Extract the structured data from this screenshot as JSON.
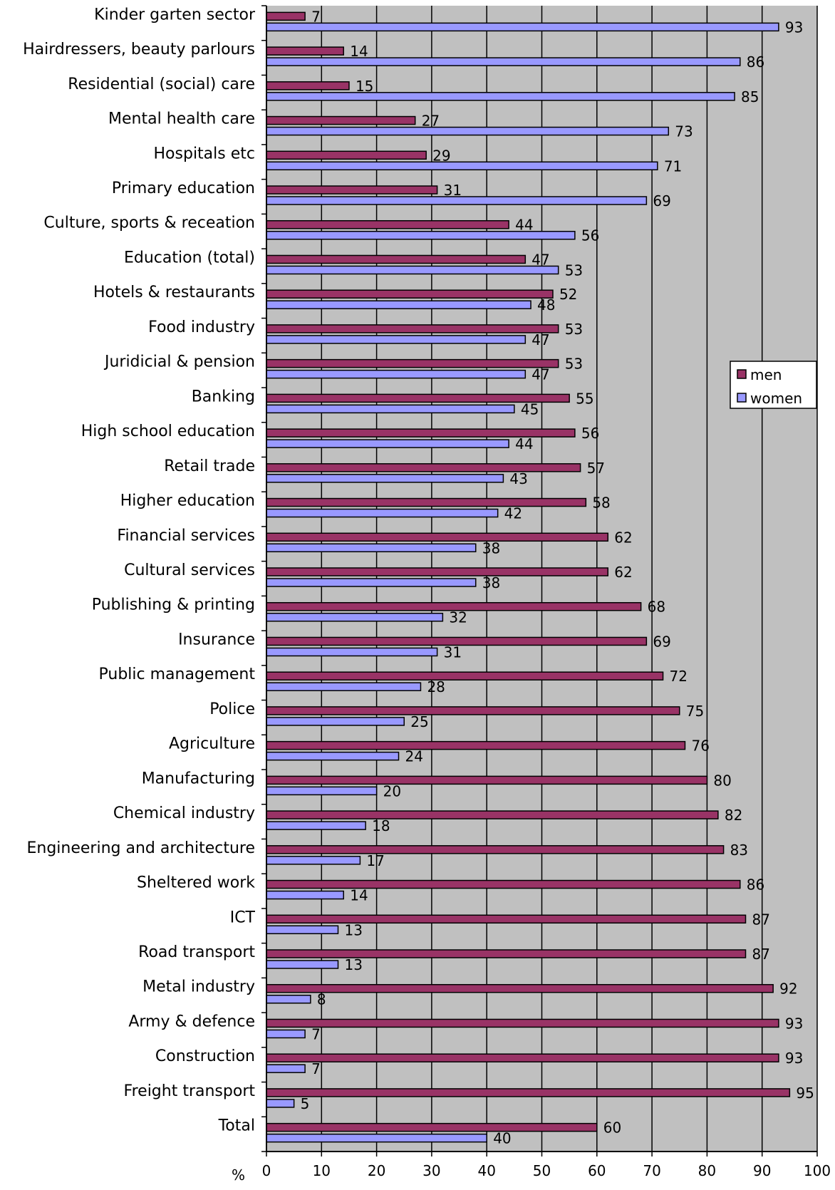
{
  "chart_data": {
    "type": "bar",
    "orientation": "horizontal",
    "xlabel": "%",
    "xlim": [
      0,
      100
    ],
    "xticks": [
      0,
      10,
      20,
      30,
      40,
      50,
      60,
      70,
      80,
      90,
      100
    ],
    "grid": true,
    "legend": "right",
    "categories": [
      "Kinder garten sector",
      "Hairdressers, beauty parlours",
      "Residential (social) care",
      "Mental health care",
      "Hospitals etc",
      "Primary education",
      "Culture, sports & receation",
      "Education (total)",
      "Hotels & restaurants",
      "Food industry",
      "Juridicial & pension",
      "Banking",
      "High school education",
      "Retail trade",
      "Higher education",
      "Financial services",
      "Cultural services",
      "Publishing & printing",
      "Insurance",
      "Public management",
      "Police",
      "Agriculture",
      "Manufacturing",
      "Chemical industry",
      "Engineering and architecture",
      "Sheltered work",
      "ICT",
      "Road transport",
      "Metal industry",
      "Army & defence",
      "Construction",
      "Freight transport",
      "Total"
    ],
    "series": [
      {
        "name": "men",
        "color": "#993366",
        "values": [
          7,
          14,
          15,
          27,
          29,
          31,
          44,
          47,
          52,
          53,
          53,
          55,
          56,
          57,
          58,
          62,
          62,
          68,
          69,
          72,
          75,
          76,
          80,
          82,
          83,
          86,
          87,
          87,
          92,
          93,
          93,
          95,
          60
        ]
      },
      {
        "name": "women",
        "color": "#9999ff",
        "values": [
          93,
          86,
          85,
          73,
          71,
          69,
          56,
          53,
          48,
          47,
          47,
          45,
          44,
          43,
          42,
          38,
          38,
          32,
          31,
          28,
          25,
          24,
          20,
          18,
          17,
          14,
          13,
          13,
          8,
          7,
          7,
          5,
          40
        ]
      }
    ],
    "plot_background": "#c0c0c0"
  }
}
